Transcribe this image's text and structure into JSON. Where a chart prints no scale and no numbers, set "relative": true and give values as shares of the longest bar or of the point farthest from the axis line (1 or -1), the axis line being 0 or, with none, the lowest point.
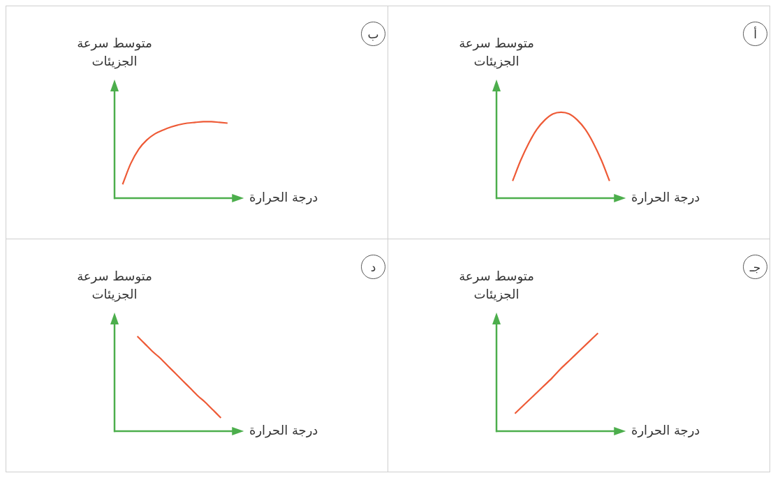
{
  "chart_data": [
    {
      "type": "line",
      "annotations": [
        "أ"
      ],
      "xlabel": "درجة الحرارة",
      "ylabel": "متوسط سرعة الجزيئات",
      "relative": true,
      "color": "#ee5a36",
      "categories": [
        null,
        null,
        null,
        null,
        null,
        null,
        null,
        null,
        null,
        null,
        null,
        null,
        null,
        null,
        null,
        null,
        null
      ],
      "values": [
        null,
        null,
        0.2,
        0.44,
        0.64,
        0.8,
        0.91,
        0.98,
        1,
        0.98,
        0.91,
        0.8,
        0.64,
        0.44,
        0.2,
        null,
        null
      ]
    },
    {
      "type": "line",
      "annotations": [
        "ب"
      ],
      "xlabel": "درجة الحرارة",
      "ylabel": "متوسط سرعة الجزيئات",
      "relative": true,
      "color": "#ee5a36",
      "categories": [
        null,
        null,
        null,
        null,
        null,
        null,
        null,
        null,
        null,
        null,
        null,
        null,
        null,
        null,
        null,
        null,
        null
      ],
      "values": [
        null,
        0.18,
        0.45,
        0.64,
        0.76,
        0.84,
        0.89,
        0.93,
        0.96,
        0.98,
        0.99,
        1,
        1,
        0.99,
        0.98,
        null,
        null
      ]
    },
    {
      "type": "line",
      "annotations": [
        "جـ"
      ],
      "xlabel": "درجة الحرارة",
      "ylabel": "متوسط سرعة الجزيئات",
      "relative": true,
      "color": "#ee5a36",
      "categories": [
        null,
        null,
        null,
        null,
        null,
        null,
        null,
        null,
        null,
        null,
        null,
        null,
        null,
        null,
        null
      ],
      "values": [
        null,
        null,
        0.18,
        0.27,
        0.36,
        0.45,
        0.54,
        0.64,
        0.73,
        0.82,
        0.91,
        1,
        null,
        null,
        null
      ]
    },
    {
      "type": "line",
      "annotations": [
        "د"
      ],
      "xlabel": "درجة الحرارة",
      "ylabel": "متوسط سرعة الجزيئات",
      "relative": true,
      "color": "#ee5a36",
      "categories": [
        null,
        null,
        null,
        null,
        null,
        null,
        null,
        null,
        null,
        null,
        null,
        null,
        null,
        null,
        null,
        null,
        null,
        null
      ],
      "values": [
        null,
        null,
        null,
        1,
        0.92,
        0.84,
        0.77,
        0.69,
        0.61,
        0.53,
        0.45,
        0.37,
        0.3,
        0.22,
        0.14,
        null,
        null,
        null
      ]
    }
  ]
}
